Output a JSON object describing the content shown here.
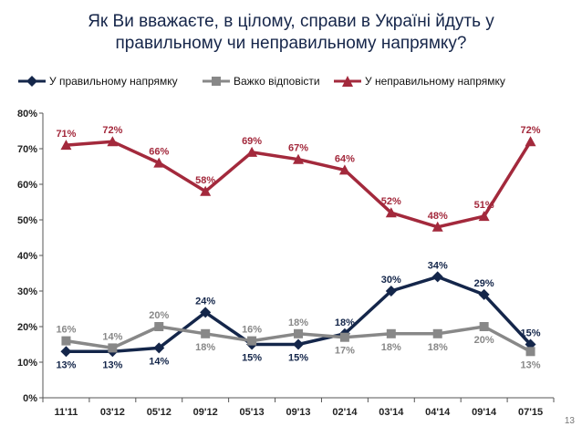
{
  "title": {
    "line1": "Як Ви вважаєте, в цілому, справи в Україні йдуть у",
    "line2": "правильному чи неправильному напрямку?"
  },
  "page_number": "13",
  "chart_data": {
    "type": "line",
    "categories": [
      "11'11",
      "03'12",
      "05'12",
      "09'12",
      "05'13",
      "09'13",
      "02'14",
      "03'14",
      "04'14",
      "09'14",
      "07'15"
    ],
    "ylim": [
      0,
      80
    ],
    "yticks": [
      0,
      10,
      20,
      30,
      40,
      50,
      60,
      70,
      80
    ],
    "ytick_labels": [
      "0%",
      "10%",
      "20%",
      "30%",
      "40%",
      "50%",
      "60%",
      "70%",
      "80%"
    ],
    "series": [
      {
        "name": "У правильному напрямку",
        "color": "#14264a",
        "marker": "diamond",
        "values": [
          13,
          13,
          14,
          24,
          15,
          15,
          18,
          30,
          34,
          29,
          15
        ],
        "labels": [
          "13%",
          "13%",
          "14%",
          "24%",
          "15%",
          "15%",
          "18%",
          "30%",
          "34%",
          "29%",
          "15%"
        ],
        "label_pos": [
          "below",
          "below",
          "below",
          "above",
          "below",
          "below",
          "above",
          "above",
          "above",
          "above",
          "above"
        ]
      },
      {
        "name": "Важко відповісти",
        "color": "#888888",
        "marker": "square",
        "values": [
          16,
          14,
          20,
          18,
          16,
          18,
          17,
          18,
          18,
          20,
          13
        ],
        "labels": [
          "16%",
          "14%",
          "20%",
          "18%",
          "16%",
          "18%",
          "17%",
          "18%",
          "18%",
          "20%",
          "13%"
        ],
        "label_pos": [
          "above",
          "above",
          "above",
          "below",
          "above",
          "above",
          "below",
          "below",
          "below",
          "below",
          "below"
        ]
      },
      {
        "name": "У неправильному напрямку",
        "color": "#a3293c",
        "marker": "triangle",
        "values": [
          71,
          72,
          66,
          58,
          69,
          67,
          64,
          52,
          48,
          51,
          72
        ],
        "labels": [
          "71%",
          "72%",
          "66%",
          "58%",
          "69%",
          "67%",
          "64%",
          "52%",
          "48%",
          "51%",
          "72%"
        ],
        "label_pos": [
          "above",
          "above",
          "above",
          "above",
          "above",
          "above",
          "above",
          "above",
          "above",
          "above",
          "above"
        ]
      }
    ]
  },
  "legend": {
    "items": [
      {
        "label": "У правильному напрямку"
      },
      {
        "label": "Важко відповісти"
      },
      {
        "label": "У неправильному напрямку"
      }
    ]
  }
}
